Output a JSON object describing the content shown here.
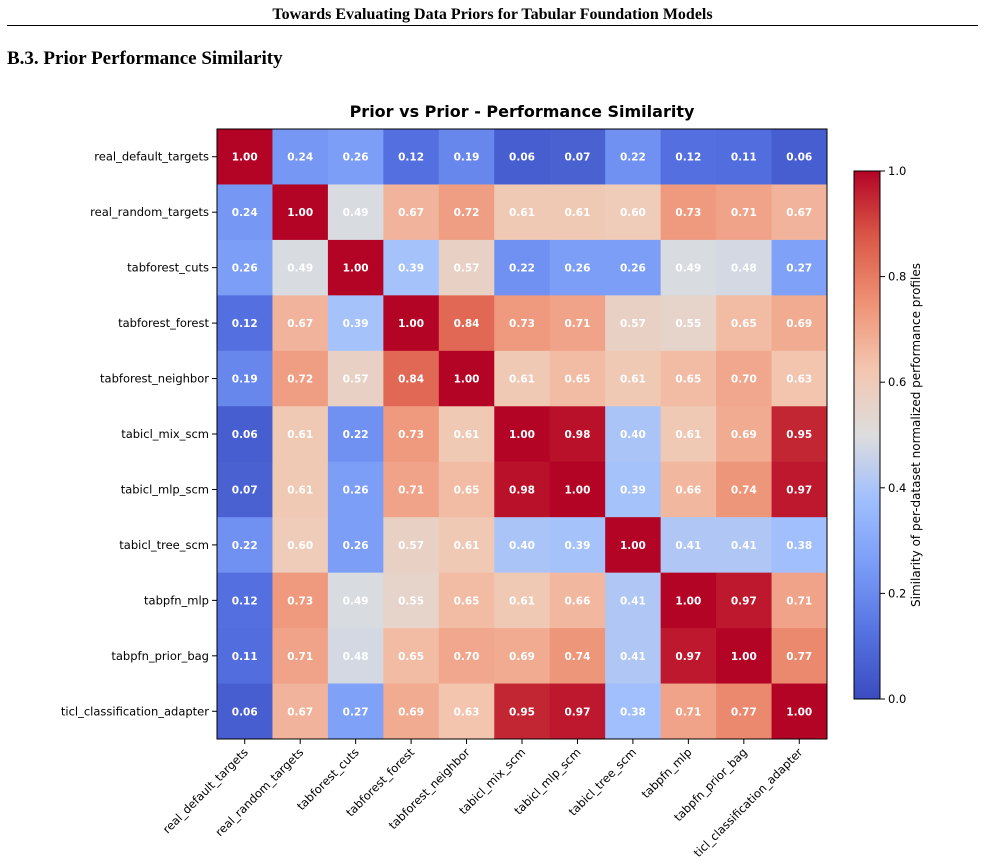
{
  "paper": {
    "running_head": "Towards Evaluating Data Priors for Tabular Foundation Models",
    "section_heading": "B.3. Prior Performance Similarity"
  },
  "chart_data": {
    "type": "heatmap",
    "title": "Prior vs Prior - Performance Similarity",
    "colormap": "coolwarm",
    "vmin": 0.0,
    "vmax": 1.0,
    "labels": [
      "real_default_targets",
      "real_random_targets",
      "tabforest_cuts",
      "tabforest_forest",
      "tabforest_neighbor",
      "tabicl_mix_scm",
      "tabicl_mlp_scm",
      "tabicl_tree_scm",
      "tabpfn_mlp",
      "tabpfn_prior_bag",
      "ticl_classification_adapter"
    ],
    "matrix": [
      [
        1.0,
        0.24,
        0.26,
        0.12,
        0.19,
        0.06,
        0.07,
        0.22,
        0.12,
        0.11,
        0.06
      ],
      [
        0.24,
        1.0,
        0.49,
        0.67,
        0.72,
        0.61,
        0.61,
        0.6,
        0.73,
        0.71,
        0.67
      ],
      [
        0.26,
        0.49,
        1.0,
        0.39,
        0.57,
        0.22,
        0.26,
        0.26,
        0.49,
        0.48,
        0.27
      ],
      [
        0.12,
        0.67,
        0.39,
        1.0,
        0.84,
        0.73,
        0.71,
        0.57,
        0.55,
        0.65,
        0.69
      ],
      [
        0.19,
        0.72,
        0.57,
        0.84,
        1.0,
        0.61,
        0.65,
        0.61,
        0.65,
        0.7,
        0.63
      ],
      [
        0.06,
        0.61,
        0.22,
        0.73,
        0.61,
        1.0,
        0.98,
        0.4,
        0.61,
        0.69,
        0.95
      ],
      [
        0.07,
        0.61,
        0.26,
        0.71,
        0.65,
        0.98,
        1.0,
        0.39,
        0.66,
        0.74,
        0.97
      ],
      [
        0.22,
        0.6,
        0.26,
        0.57,
        0.61,
        0.4,
        0.39,
        1.0,
        0.41,
        0.41,
        0.38
      ],
      [
        0.12,
        0.73,
        0.49,
        0.55,
        0.65,
        0.61,
        0.66,
        0.41,
        1.0,
        0.97,
        0.71
      ],
      [
        0.11,
        0.71,
        0.48,
        0.65,
        0.7,
        0.69,
        0.74,
        0.41,
        0.97,
        1.0,
        0.77
      ],
      [
        0.06,
        0.67,
        0.27,
        0.69,
        0.63,
        0.95,
        0.97,
        0.38,
        0.71,
        0.77,
        1.0
      ]
    ],
    "colorbar": {
      "label": "Similarity of per-dataset normalized performance profiles",
      "ticks": [
        "0.0",
        "0.2",
        "0.4",
        "0.6",
        "0.8",
        "1.0"
      ]
    }
  }
}
